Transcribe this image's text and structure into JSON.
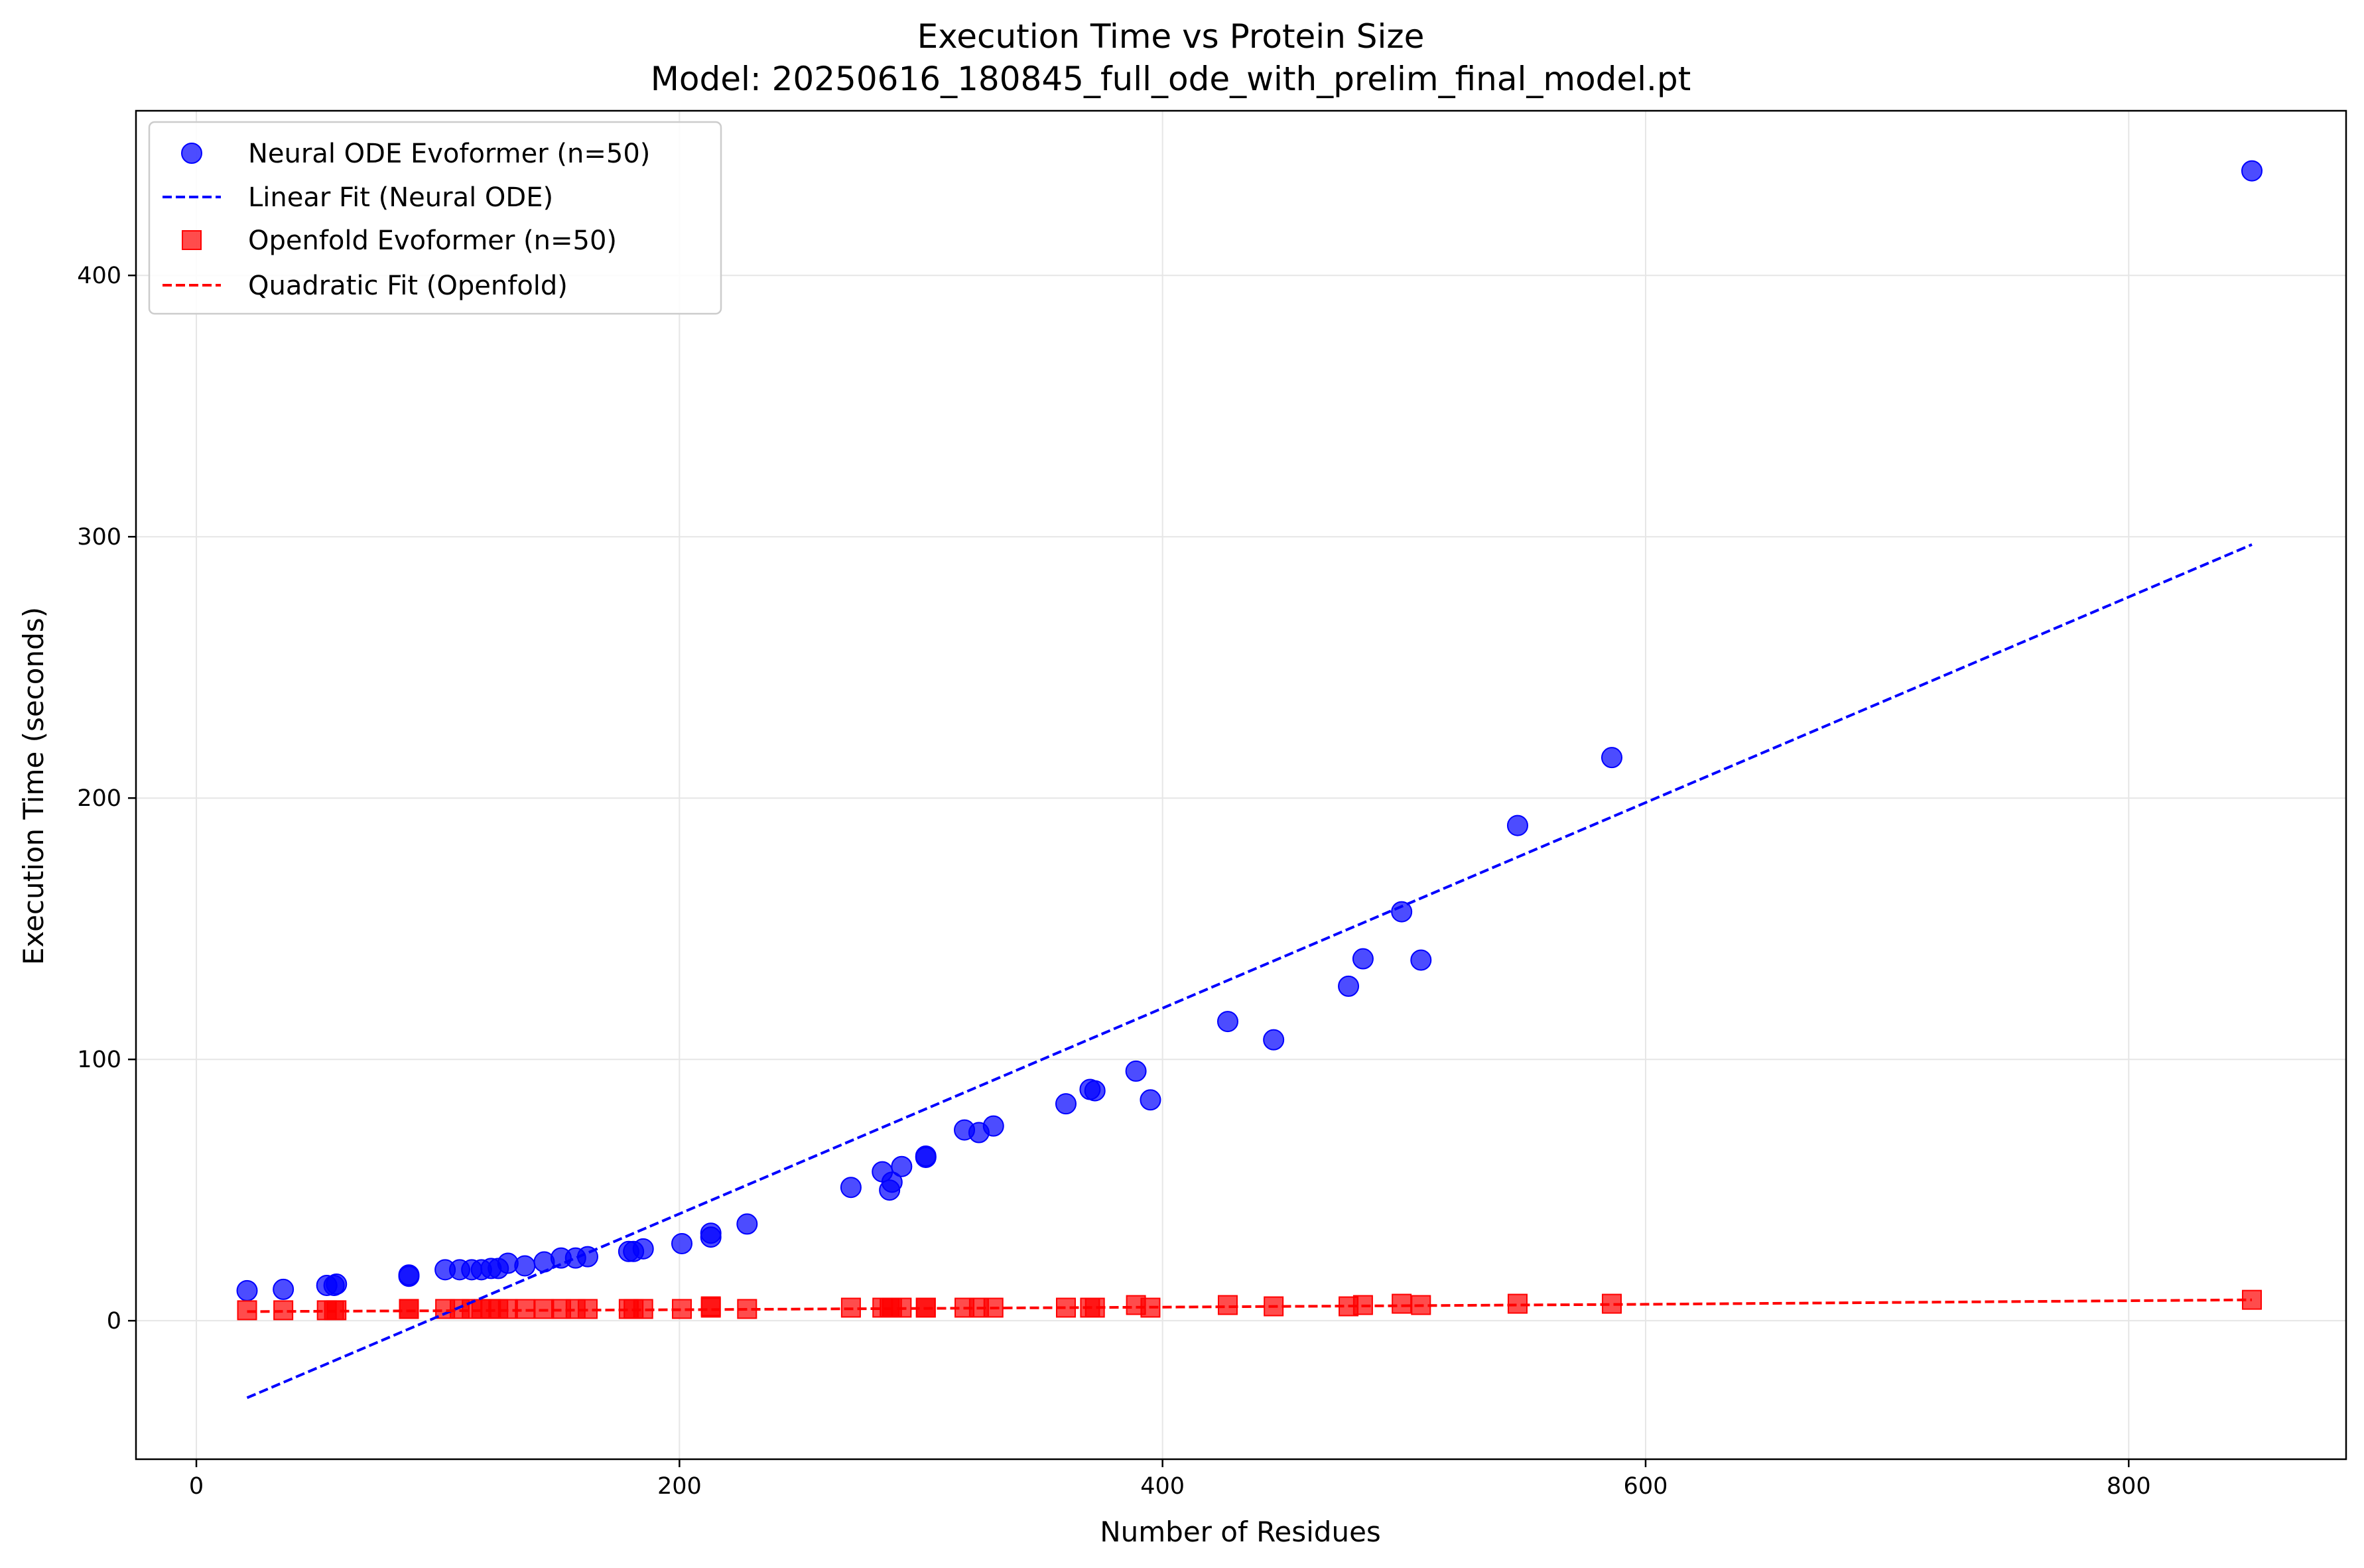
{
  "chart_data": {
    "type": "scatter",
    "title": "Execution Time vs Protein Size",
    "subtitle": "Model: 20250616_180845_full_ode_with_prelim_final_model.pt",
    "xlabel": "Number of Residues",
    "ylabel": "Execution Time (seconds)",
    "xlim": [
      -25,
      890
    ],
    "ylim": [
      -53,
      463
    ],
    "xticks": [
      0,
      200,
      400,
      600,
      800
    ],
    "yticks": [
      0,
      100,
      200,
      300,
      400
    ],
    "grid": true,
    "legend_position": "top-left",
    "series": [
      {
        "name": "Neural ODE Evoformer (n=50)",
        "kind": "scatter",
        "marker": "circle",
        "color": "#0000ff",
        "points": [
          [
            21,
            11.5
          ],
          [
            36,
            12
          ],
          [
            54,
            13.5
          ],
          [
            57,
            13.5
          ],
          [
            58,
            14
          ],
          [
            88,
            17
          ],
          [
            88,
            17.5
          ],
          [
            103,
            19.5
          ],
          [
            109,
            19.5
          ],
          [
            114,
            19.5
          ],
          [
            118,
            19.5
          ],
          [
            122,
            20
          ],
          [
            125,
            20
          ],
          [
            129,
            22
          ],
          [
            136,
            21
          ],
          [
            144,
            22.5
          ],
          [
            151,
            24
          ],
          [
            157,
            24
          ],
          [
            162,
            24.5
          ],
          [
            179,
            26.5
          ],
          [
            181,
            26.5
          ],
          [
            185,
            27.5
          ],
          [
            201,
            29.5
          ],
          [
            213,
            33.5
          ],
          [
            213,
            32
          ],
          [
            228,
            37
          ],
          [
            271,
            51
          ],
          [
            284,
            57
          ],
          [
            287,
            50
          ],
          [
            288,
            53
          ],
          [
            292,
            59
          ],
          [
            302,
            62.5
          ],
          [
            302,
            63
          ],
          [
            318,
            73
          ],
          [
            324,
            72
          ],
          [
            330,
            74.5
          ],
          [
            360,
            83
          ],
          [
            370,
            88.5
          ],
          [
            372,
            88
          ],
          [
            389,
            95.5
          ],
          [
            395,
            84.5
          ],
          [
            427,
            114.5
          ],
          [
            446,
            107.5
          ],
          [
            477,
            128
          ],
          [
            483,
            138.5
          ],
          [
            499,
            156.5
          ],
          [
            507,
            138
          ],
          [
            547,
            189.5
          ],
          [
            586,
            215.5
          ],
          [
            851,
            440
          ]
        ]
      },
      {
        "name": "Linear Fit (Neural ODE)",
        "kind": "line",
        "dash": true,
        "color": "#0000ff",
        "points": [
          [
            21,
            -29.5
          ],
          [
            851,
            297
          ]
        ]
      },
      {
        "name": "Openfold Evoformer (n=50)",
        "kind": "scatter",
        "marker": "square",
        "color": "#ff0000",
        "points": [
          [
            21,
            4
          ],
          [
            36,
            4
          ],
          [
            54,
            4
          ],
          [
            57,
            4
          ],
          [
            58,
            4
          ],
          [
            88,
            4.5
          ],
          [
            88,
            4.5
          ],
          [
            103,
            4.5
          ],
          [
            109,
            4.5
          ],
          [
            114,
            4.5
          ],
          [
            118,
            4.5
          ],
          [
            122,
            4.5
          ],
          [
            125,
            4.5
          ],
          [
            129,
            4.5
          ],
          [
            136,
            4.5
          ],
          [
            144,
            4.5
          ],
          [
            151,
            4.5
          ],
          [
            157,
            4.5
          ],
          [
            162,
            4.5
          ],
          [
            179,
            4.5
          ],
          [
            181,
            4.5
          ],
          [
            185,
            4.5
          ],
          [
            201,
            4.5
          ],
          [
            213,
            5.5
          ],
          [
            213,
            5
          ],
          [
            228,
            4.5
          ],
          [
            271,
            5
          ],
          [
            284,
            5
          ],
          [
            287,
            5
          ],
          [
            288,
            5
          ],
          [
            292,
            5
          ],
          [
            302,
            5
          ],
          [
            302,
            5
          ],
          [
            318,
            5
          ],
          [
            324,
            5
          ],
          [
            330,
            5
          ],
          [
            360,
            5
          ],
          [
            370,
            5
          ],
          [
            372,
            5
          ],
          [
            389,
            6
          ],
          [
            395,
            5
          ],
          [
            427,
            6
          ],
          [
            446,
            5.5
          ],
          [
            477,
            5.5
          ],
          [
            483,
            6
          ],
          [
            499,
            6.5
          ],
          [
            507,
            6
          ],
          [
            547,
            6.5
          ],
          [
            586,
            6.5
          ],
          [
            851,
            8
          ]
        ]
      },
      {
        "name": "Quadratic Fit (Openfold)",
        "kind": "line",
        "dash": true,
        "color": "#ff0000",
        "points": [
          [
            21,
            3.5
          ],
          [
            200,
            4.2
          ],
          [
            400,
            5.2
          ],
          [
            600,
            6.3
          ],
          [
            851,
            8
          ]
        ]
      }
    ]
  }
}
